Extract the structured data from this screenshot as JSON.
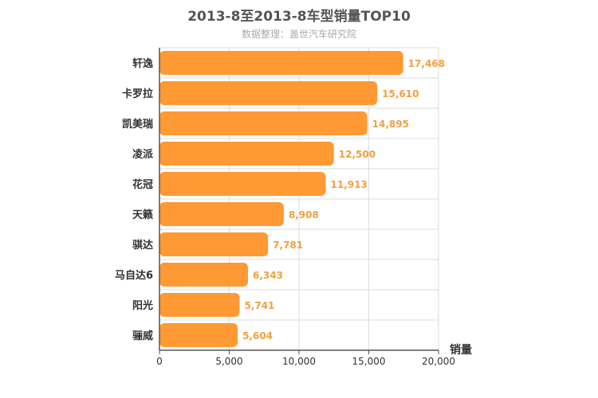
{
  "chart_data": {
    "type": "bar",
    "orientation": "horizontal",
    "title": "2013-8至2013-8车型销量TOP10",
    "subtitle": "数据整理：盖世汽车研究院",
    "categories": [
      "轩逸",
      "卡罗拉",
      "凯美瑞",
      "凌派",
      "花冠",
      "天籁",
      "骐达",
      "马自达6",
      "阳光",
      "骊威"
    ],
    "series": [
      {
        "values": [
          17468,
          15610,
          14895,
          12500,
          11913,
          8908,
          7781,
          6343,
          5741,
          5604
        ],
        "value_labels": [
          "17,468",
          "15,610",
          "14,895",
          "12,500",
          "11,913",
          "8,908",
          "7,781",
          "6,343",
          "5,741",
          "5,604"
        ]
      }
    ],
    "xlabel": "销量",
    "ylabel": "",
    "xlim": [
      0,
      20000
    ],
    "ticks": [
      0,
      5000,
      10000,
      15000,
      20000
    ],
    "tick_labels": [
      "0",
      "5,000",
      "10,000",
      "15,000",
      "20,000"
    ],
    "grid": true,
    "bar_color": "#ff9933"
  }
}
